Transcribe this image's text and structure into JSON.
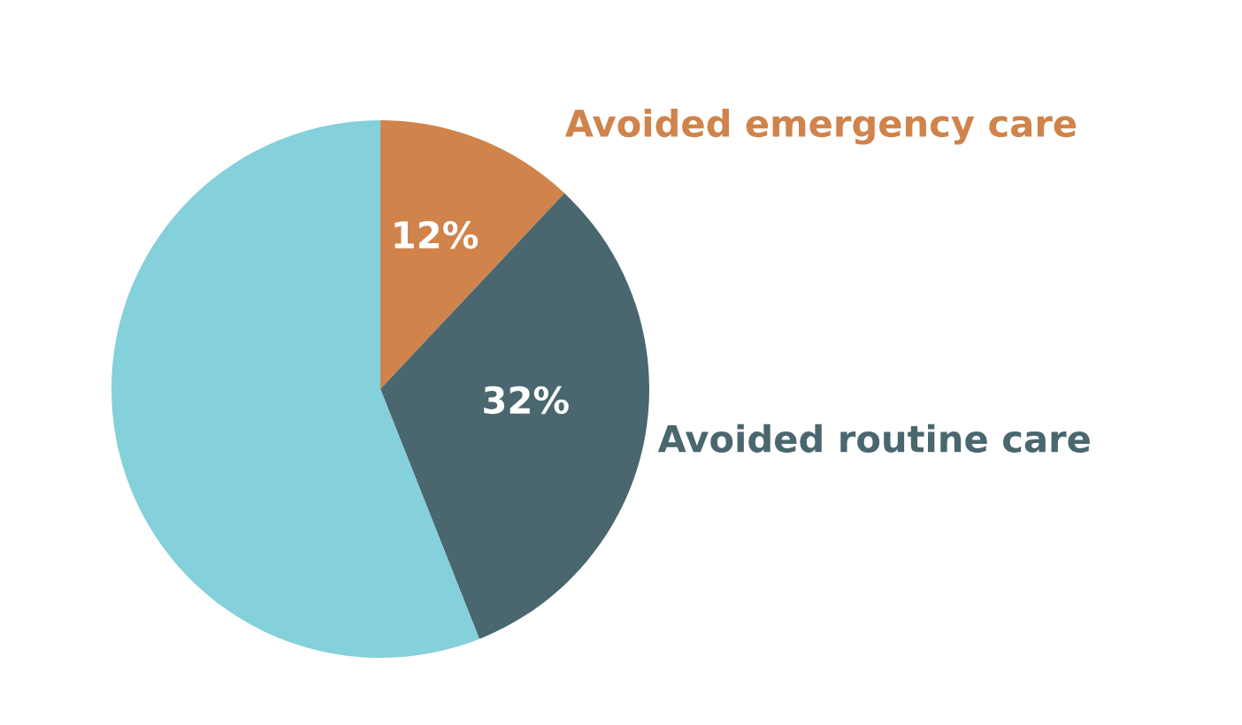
{
  "chart_data": {
    "type": "pie",
    "categories": [
      "Avoided emergency care",
      "Avoided routine care",
      null
    ],
    "values": [
      12,
      32,
      56
    ],
    "colors": [
      "#d0834a",
      "#4a666e",
      "#84d0db"
    ],
    "value_labels": [
      "12%",
      "32%",
      null
    ]
  }
}
